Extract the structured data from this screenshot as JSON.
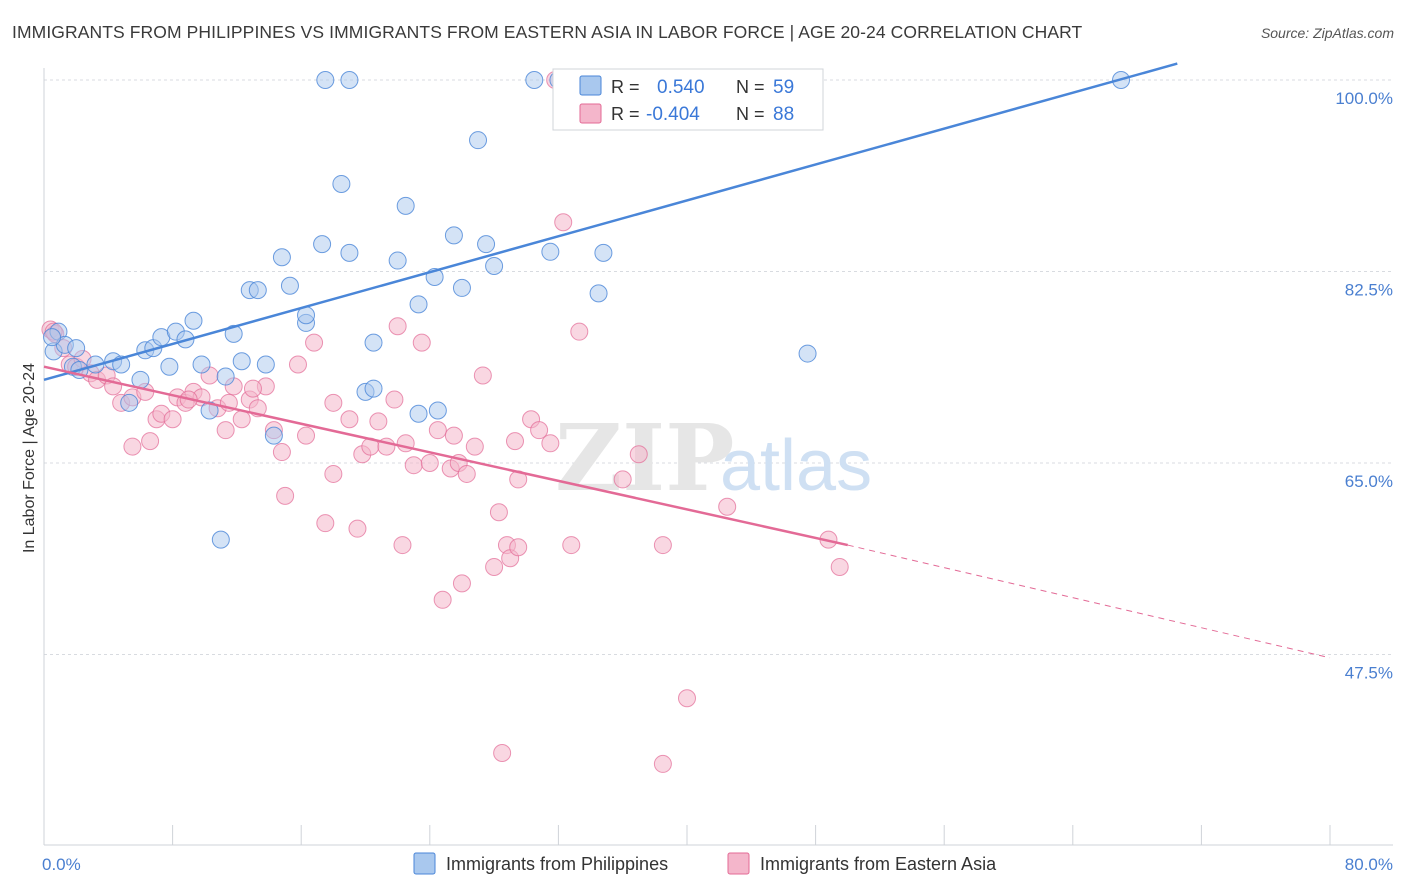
{
  "title": "IMMIGRANTS FROM PHILIPPINES VS IMMIGRANTS FROM EASTERN ASIA IN LABOR FORCE | AGE 20-24 CORRELATION CHART",
  "source": "Source: ZipAtlas.com",
  "watermark": {
    "zip": "ZIP",
    "atlas": "atlas"
  },
  "colors": {
    "blue": "#4a86d8",
    "blue_fill": "#a9c8ee",
    "pink": "#e36a96",
    "pink_fill": "#f4b6cb",
    "grid": "#d8dbe0",
    "tick_text": "#4a7fd0"
  },
  "legend": {
    "rows": [
      {
        "r_label": "R =",
        "r_value": "0.540",
        "n_label": "N =",
        "n_value": "59"
      },
      {
        "r_label": "R =",
        "r_value": "-0.404",
        "n_label": "N =",
        "n_value": "88"
      }
    ]
  },
  "bottom_legend": [
    "Immigrants from Philippines",
    "Immigrants from Eastern Asia"
  ],
  "chart_data": {
    "type": "scatter",
    "ylabel": "In Labor Force | Age 20-24",
    "xlim": [
      0,
      80
    ],
    "ylim": [
      31.5,
      101.5
    ],
    "x_tick_labels": [
      "0.0%",
      "80.0%"
    ],
    "y_ticks": [
      {
        "value": 100.0,
        "label": "100.0%"
      },
      {
        "value": 82.5,
        "label": "82.5%"
      },
      {
        "value": 65.0,
        "label": "65.0%"
      },
      {
        "value": 47.5,
        "label": "47.5%"
      }
    ],
    "series": [
      {
        "name": "Immigrants from Philippines",
        "trend": {
          "x0": 0,
          "y0": 72.6,
          "x1": 70.5,
          "y1": 101.5,
          "dashed_to": null
        },
        "points": [
          [
            0.6,
            75.2
          ],
          [
            0.9,
            77.0
          ],
          [
            1.3,
            75.8
          ],
          [
            1.8,
            73.8
          ],
          [
            2.0,
            75.5
          ],
          [
            2.2,
            73.5
          ],
          [
            3.2,
            74.0
          ],
          [
            4.3,
            74.3
          ],
          [
            4.8,
            74.0
          ],
          [
            5.3,
            70.5
          ],
          [
            6.0,
            72.6
          ],
          [
            6.3,
            75.3
          ],
          [
            6.8,
            75.5
          ],
          [
            7.3,
            76.5
          ],
          [
            7.8,
            73.8
          ],
          [
            8.2,
            77.0
          ],
          [
            8.8,
            76.3
          ],
          [
            9.3,
            78.0
          ],
          [
            9.8,
            74.0
          ],
          [
            10.3,
            69.8
          ],
          [
            11.3,
            72.9
          ],
          [
            11.8,
            76.8
          ],
          [
            12.3,
            74.3
          ],
          [
            12.8,
            80.8
          ],
          [
            13.3,
            80.8
          ],
          [
            13.8,
            74.0
          ],
          [
            14.3,
            67.5
          ],
          [
            14.8,
            83.8
          ],
          [
            15.3,
            81.2
          ],
          [
            16.3,
            77.8
          ],
          [
            16.3,
            78.5
          ],
          [
            17.3,
            85.0
          ],
          [
            17.5,
            100.0
          ],
          [
            18.5,
            90.5
          ],
          [
            19.0,
            84.2
          ],
          [
            19.0,
            100.0
          ],
          [
            20.0,
            71.5
          ],
          [
            20.5,
            76.0
          ],
          [
            20.5,
            71.8
          ],
          [
            22.0,
            83.5
          ],
          [
            22.5,
            88.5
          ],
          [
            23.3,
            79.5
          ],
          [
            23.3,
            69.5
          ],
          [
            24.3,
            82.0
          ],
          [
            24.5,
            69.8
          ],
          [
            25.5,
            85.8
          ],
          [
            26.0,
            81.0
          ],
          [
            27.0,
            94.5
          ],
          [
            27.5,
            85.0
          ],
          [
            28.0,
            83.0
          ],
          [
            30.5,
            100.0
          ],
          [
            31.5,
            84.3
          ],
          [
            32.0,
            100.0
          ],
          [
            34.5,
            80.5
          ],
          [
            34.8,
            84.2
          ],
          [
            11.0,
            58.0
          ],
          [
            47.5,
            75.0
          ],
          [
            67.0,
            100.0
          ],
          [
            0.5,
            76.5
          ]
        ]
      },
      {
        "name": "Immigrants from Eastern Asia",
        "trend": {
          "x0": 0,
          "y0": 73.8,
          "x1": 50.0,
          "y1": 57.5,
          "dashed_to": {
            "x": 80.0,
            "y": 47.2
          }
        },
        "points": [
          [
            0.4,
            77.2
          ],
          [
            0.7,
            76.8
          ],
          [
            1.2,
            75.5
          ],
          [
            1.6,
            74.0
          ],
          [
            2.0,
            73.8
          ],
          [
            2.4,
            74.5
          ],
          [
            2.9,
            73.2
          ],
          [
            3.3,
            72.6
          ],
          [
            3.9,
            73.0
          ],
          [
            4.3,
            72.0
          ],
          [
            4.8,
            70.5
          ],
          [
            5.5,
            71.0
          ],
          [
            5.5,
            66.5
          ],
          [
            6.3,
            71.5
          ],
          [
            6.6,
            67.0
          ],
          [
            7.0,
            69.0
          ],
          [
            7.3,
            69.5
          ],
          [
            8.0,
            69.0
          ],
          [
            8.3,
            71.0
          ],
          [
            8.8,
            70.5
          ],
          [
            9.3,
            71.5
          ],
          [
            9.8,
            71.0
          ],
          [
            10.3,
            73.0
          ],
          [
            10.8,
            70.0
          ],
          [
            11.3,
            68.0
          ],
          [
            11.8,
            72.0
          ],
          [
            12.3,
            69.0
          ],
          [
            12.8,
            70.8
          ],
          [
            13.3,
            70.0
          ],
          [
            13.8,
            72.0
          ],
          [
            14.3,
            68.0
          ],
          [
            14.8,
            66.0
          ],
          [
            15.0,
            62.0
          ],
          [
            15.8,
            74.0
          ],
          [
            16.3,
            67.5
          ],
          [
            16.8,
            76.0
          ],
          [
            17.5,
            59.5
          ],
          [
            18.0,
            70.5
          ],
          [
            18.0,
            64.0
          ],
          [
            19.0,
            69.0
          ],
          [
            19.5,
            59.0
          ],
          [
            19.8,
            65.8
          ],
          [
            20.3,
            66.5
          ],
          [
            20.8,
            68.8
          ],
          [
            21.3,
            66.5
          ],
          [
            21.8,
            70.8
          ],
          [
            22.0,
            77.5
          ],
          [
            22.3,
            57.5
          ],
          [
            23.0,
            64.8
          ],
          [
            23.5,
            76.0
          ],
          [
            24.0,
            65.0
          ],
          [
            24.5,
            68.0
          ],
          [
            24.8,
            52.5
          ],
          [
            25.3,
            64.5
          ],
          [
            25.5,
            67.5
          ],
          [
            25.8,
            65.0
          ],
          [
            26.0,
            54.0
          ],
          [
            26.3,
            64.0
          ],
          [
            26.8,
            66.5
          ],
          [
            27.3,
            73.0
          ],
          [
            28.0,
            55.5
          ],
          [
            28.3,
            60.5
          ],
          [
            28.8,
            57.5
          ],
          [
            29.0,
            56.3
          ],
          [
            29.3,
            67.0
          ],
          [
            29.5,
            57.3
          ],
          [
            30.3,
            69.0
          ],
          [
            30.8,
            68.0
          ],
          [
            31.5,
            66.8
          ],
          [
            32.3,
            87.0
          ],
          [
            32.8,
            57.5
          ],
          [
            33.3,
            77.0
          ],
          [
            36.0,
            63.5
          ],
          [
            38.5,
            57.5
          ],
          [
            40.0,
            43.5
          ],
          [
            38.5,
            37.5
          ],
          [
            28.5,
            38.5
          ],
          [
            42.5,
            61.0
          ],
          [
            48.8,
            58.0
          ],
          [
            49.5,
            55.5
          ],
          [
            11.5,
            70.5
          ],
          [
            13.0,
            71.8
          ],
          [
            22.5,
            66.8
          ],
          [
            31.8,
            100.0
          ],
          [
            29.5,
            63.5
          ],
          [
            37.0,
            65.8
          ],
          [
            0.6,
            77.0
          ],
          [
            9.0,
            70.8
          ]
        ]
      }
    ]
  }
}
